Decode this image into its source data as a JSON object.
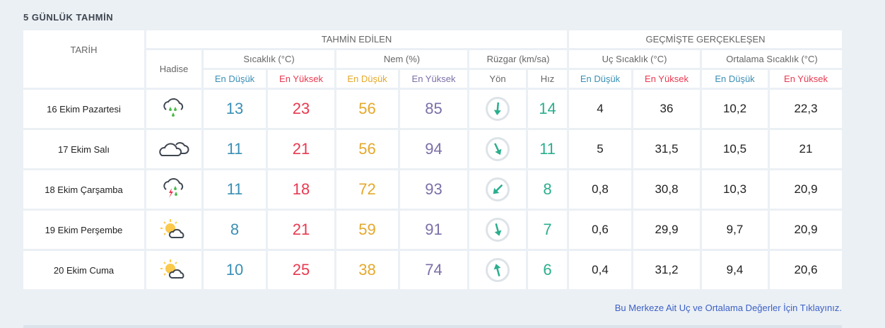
{
  "title": "5 GÜNLÜK TAHMİN",
  "headers": {
    "date": "TARİH",
    "forecast": "TAHMİN EDİLEN",
    "past": "GEÇMİŞTE GERÇEKLEŞEN",
    "event": "Hadise",
    "temp": "Sıcaklık (°C)",
    "humidity": "Nem (%)",
    "wind": "Rüzgar (km/sa)",
    "extreme": "Uç Sıcaklık (°C)",
    "avg": "Ortalama Sıcaklık (°C)",
    "low": "En Düşük",
    "high": "En Yüksek",
    "dir": "Yön",
    "speed": "Hız"
  },
  "rows": [
    {
      "date": "16 Ekim Pazartesi",
      "icon": "rain-cloud-icon",
      "tmin": "13",
      "tmax": "23",
      "hmin": "56",
      "hmax": "85",
      "wind_dir_deg": 185,
      "speed": "14",
      "ex_min": "4",
      "ex_max": "36",
      "avg_min": "10,2",
      "avg_max": "22,3"
    },
    {
      "date": "17 Ekim Salı",
      "icon": "cloudy-icon",
      "tmin": "11",
      "tmax": "21",
      "hmin": "56",
      "hmax": "94",
      "wind_dir_deg": 155,
      "speed": "11",
      "ex_min": "5",
      "ex_max": "31,5",
      "avg_min": "10,5",
      "avg_max": "21"
    },
    {
      "date": "18 Ekim Çarşamba",
      "icon": "thunderstorm-rain-icon",
      "tmin": "11",
      "tmax": "18",
      "hmin": "72",
      "hmax": "93",
      "wind_dir_deg": 225,
      "speed": "8",
      "ex_min": "0,8",
      "ex_max": "30,8",
      "avg_min": "10,3",
      "avg_max": "20,9"
    },
    {
      "date": "19 Ekim Perşembe",
      "icon": "partly-cloudy-icon",
      "tmin": "8",
      "tmax": "21",
      "hmin": "59",
      "hmax": "91",
      "wind_dir_deg": 165,
      "speed": "7",
      "ex_min": "0,6",
      "ex_max": "29,9",
      "avg_min": "9,7",
      "avg_max": "20,9"
    },
    {
      "date": "20 Ekim Cuma",
      "icon": "partly-cloudy-icon",
      "tmin": "10",
      "tmax": "25",
      "hmin": "38",
      "hmax": "74",
      "wind_dir_deg": 345,
      "speed": "6",
      "ex_min": "0,4",
      "ex_max": "31,2",
      "avg_min": "9,4",
      "avg_max": "20,6"
    }
  ],
  "link": "Bu Merkeze Ait Uç ve Ortalama Değerler İçin Tıklayınız.",
  "colors": {
    "low": "#3a8fb5",
    "high": "#e8394f",
    "humidity_low": "#e5a82b",
    "humidity_high": "#7b6fa8",
    "wind": "#2aae8e"
  }
}
